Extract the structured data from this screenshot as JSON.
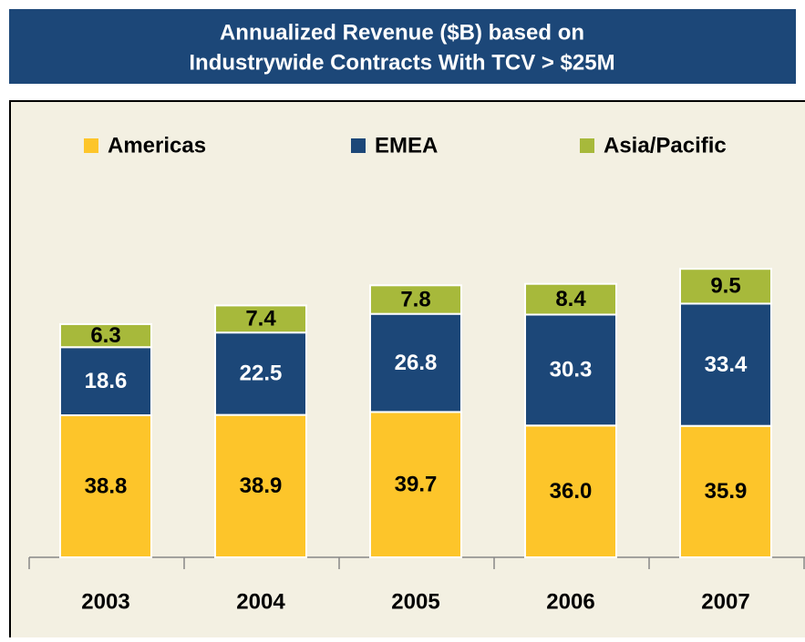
{
  "chart_data": {
    "type": "stacked_bar",
    "title": [
      "Annualized Revenue ($B) based on",
      "Industrywide Contracts With TCV > $25M"
    ],
    "categories": [
      "2003",
      "2004",
      "2005",
      "2006",
      "2007"
    ],
    "series": [
      {
        "name": "Americas",
        "color": "#fdc52a",
        "values": [
          38.8,
          38.9,
          39.7,
          36.0,
          35.9
        ],
        "value_labels": [
          "38.8",
          "38.9",
          "39.7",
          "36.0",
          "35.9"
        ]
      },
      {
        "name": "EMEA",
        "color": "#1c4778",
        "values": [
          18.6,
          22.5,
          26.8,
          30.3,
          33.4
        ],
        "value_labels": [
          "18.6",
          "22.5",
          "26.8",
          "30.3",
          "33.4"
        ]
      },
      {
        "name": "Asia/Pacific",
        "color": "#a7b93b",
        "values": [
          6.3,
          7.4,
          7.8,
          8.4,
          9.5
        ],
        "value_labels": [
          "6.3",
          "7.4",
          "7.8",
          "8.4",
          "9.5"
        ]
      }
    ]
  }
}
